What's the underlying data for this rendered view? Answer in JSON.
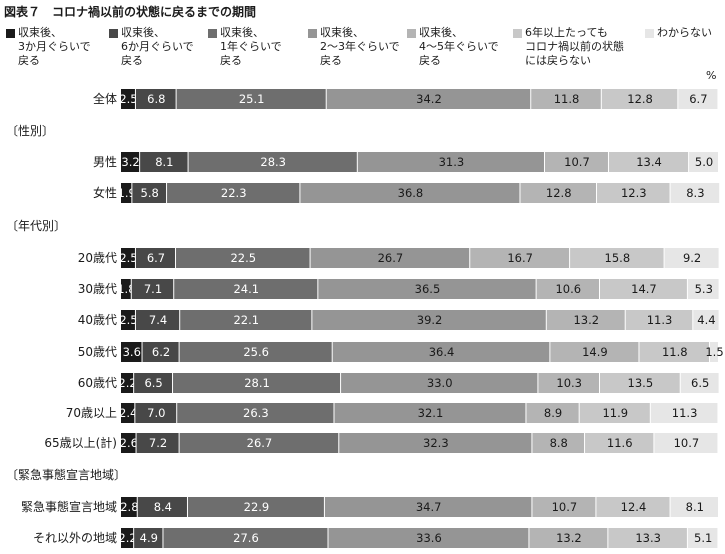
{
  "title": "図表７　コロナ禍以前の状態に戻るまでの期間",
  "unit": "%",
  "chart_data": {
    "type": "bar",
    "orientation": "horizontal",
    "stacked": true,
    "series": [
      {
        "name": "収束後、\n3か月ぐらいで\n戻る",
        "color": "#1a1a1a"
      },
      {
        "name": "収束後、\n6か月ぐらいで\n戻る",
        "color": "#484848"
      },
      {
        "name": "収束後、\n1年ぐらいで\n戻る",
        "color": "#6e6e6e"
      },
      {
        "name": "収束後、\n2～3年ぐらいで\n戻る",
        "color": "#959595"
      },
      {
        "name": "収束後、\n4～5年ぐらいで\n戻る",
        "color": "#b4b4b4"
      },
      {
        "name": "6年以上たっても\nコロナ禍以前の状態\nには戻らない",
        "color": "#c8c8c8"
      },
      {
        "name": "わからない",
        "color": "#e6e6e6"
      }
    ],
    "rows": [
      {
        "label": "全体",
        "values": [
          2.5,
          6.8,
          25.1,
          34.2,
          11.8,
          12.8,
          6.7
        ]
      },
      {
        "section": "〔性別〕"
      },
      {
        "label": "男性",
        "values": [
          3.2,
          8.1,
          28.3,
          31.3,
          10.7,
          13.4,
          5.0
        ]
      },
      {
        "label": "女性",
        "values": [
          1.9,
          5.8,
          22.3,
          36.8,
          12.8,
          12.3,
          8.3
        ]
      },
      {
        "section": "〔年代別〕"
      },
      {
        "label": "20歳代",
        "values": [
          2.5,
          6.7,
          22.5,
          26.7,
          16.7,
          15.8,
          9.2
        ]
      },
      {
        "label": "30歳代",
        "values": [
          1.8,
          7.1,
          24.1,
          36.5,
          10.6,
          14.7,
          5.3
        ]
      },
      {
        "label": "40歳代",
        "values": [
          2.5,
          7.4,
          22.1,
          39.2,
          13.2,
          11.3,
          4.4
        ]
      },
      {
        "label": "50歳代",
        "values": [
          3.6,
          6.2,
          25.6,
          36.4,
          14.9,
          11.8,
          1.5
        ]
      },
      {
        "label": "60歳代",
        "values": [
          2.2,
          6.5,
          28.1,
          33.0,
          10.3,
          13.5,
          6.5
        ]
      },
      {
        "label": "70歳以上",
        "values": [
          2.4,
          7.0,
          26.3,
          32.1,
          8.9,
          11.9,
          11.3
        ]
      },
      {
        "label": "65歳以上(計)",
        "values": [
          2.6,
          7.2,
          26.7,
          32.3,
          8.8,
          11.6,
          10.7
        ]
      },
      {
        "section": "〔緊急事態宣言地域〕"
      },
      {
        "label": "緊急事態宣言地域",
        "values": [
          2.8,
          8.4,
          22.9,
          34.7,
          10.7,
          12.4,
          8.1
        ]
      },
      {
        "label": "それ以外の地域",
        "values": [
          2.2,
          4.9,
          27.6,
          33.6,
          13.2,
          13.3,
          5.1
        ]
      }
    ],
    "xlim": [
      0,
      100
    ],
    "legend_position": "top"
  }
}
